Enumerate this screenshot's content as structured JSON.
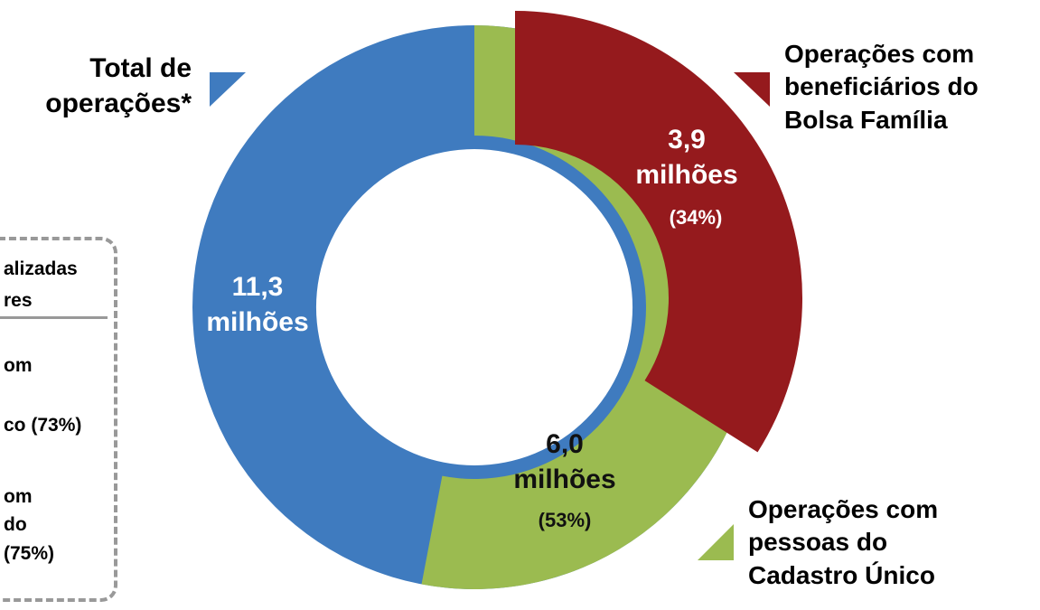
{
  "chart_data": {
    "type": "nested-donut",
    "series": [
      {
        "name": "Total de operações*",
        "color": "#3f7bbf",
        "values": [
          11.3
        ],
        "value_labels": [
          "11,3 milhões"
        ]
      },
      {
        "name": "Operações com pessoas do Cadastro Único",
        "color": "#9bbb50",
        "values": [
          6.0
        ],
        "value_labels": [
          "6,0 milhões"
        ],
        "percent": [
          53
        ],
        "percent_labels": [
          "(53%)"
        ]
      },
      {
        "name": "Operações com beneficiários do Bolsa Família",
        "color": "#951a1d",
        "values": [
          3.9
        ],
        "value_labels": [
          "3,9 milhões"
        ],
        "percent": [
          34
        ],
        "percent_labels": [
          "(34%)"
        ]
      }
    ],
    "notes_box": [
      "alizadas",
      "res",
      "om",
      "co (73%)",
      "om",
      "do",
      "(75%)"
    ]
  }
}
